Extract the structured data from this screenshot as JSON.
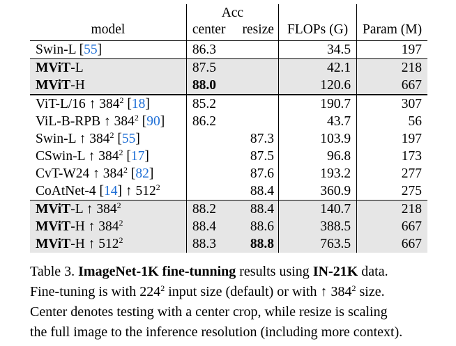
{
  "table": {
    "header": {
      "model": "model",
      "acc": "Acc",
      "center": "center",
      "resize": "resize",
      "flops": "FLOPs (G)",
      "param": "Param (M)"
    },
    "groups": [
      {
        "shaded": false,
        "rows": [
          {
            "pre": "Swin-L ",
            "bold": "",
            "res": "",
            "sup": "",
            "ref": "55",
            "center": "86.3",
            "center_bold": false,
            "resize": "",
            "resize_bold": false,
            "flops": "34.5",
            "param": "197"
          }
        ]
      },
      {
        "shaded": true,
        "rows": [
          {
            "pre": "",
            "bold": "MViT",
            "post": "-L",
            "res": "",
            "sup": "",
            "ref": "",
            "center": "87.5",
            "center_bold": false,
            "resize": "",
            "resize_bold": false,
            "flops": "42.1",
            "param": "218"
          },
          {
            "pre": "",
            "bold": "MViT",
            "post": "-H",
            "res": "",
            "sup": "",
            "ref": "",
            "center": "88.0",
            "center_bold": true,
            "resize": "",
            "resize_bold": false,
            "flops": "120.6",
            "param": "667"
          }
        ]
      },
      {
        "shaded": false,
        "rows": [
          {
            "pre": "ViT-L/16 ↑ ",
            "bold": "",
            "res": "384",
            "sup": "2",
            "ref": "18",
            "center": "85.2",
            "center_bold": false,
            "resize": "",
            "resize_bold": false,
            "flops": "190.7",
            "param": "307"
          },
          {
            "pre": "ViL-B-RPB ↑ ",
            "bold": "",
            "res": "384",
            "sup": "2",
            "ref": "90",
            "center": "86.2",
            "center_bold": false,
            "resize": "",
            "resize_bold": false,
            "flops": "43.7",
            "param": "56"
          },
          {
            "pre": "Swin-L ↑ ",
            "bold": "",
            "res": "384",
            "sup": "2",
            "ref": "55",
            "center": "",
            "center_bold": false,
            "resize": "87.3",
            "resize_bold": false,
            "flops": "103.9",
            "param": "197"
          },
          {
            "pre": "CSwin-L ↑ ",
            "bold": "",
            "res": "384",
            "sup": "2",
            "ref": "17",
            "center": "",
            "center_bold": false,
            "resize": "87.5",
            "resize_bold": false,
            "flops": "96.8",
            "param": "173"
          },
          {
            "pre": "CvT-W24 ↑ ",
            "bold": "",
            "res": "384",
            "sup": "2",
            "ref": "82",
            "center": "",
            "center_bold": false,
            "resize": "87.6",
            "resize_bold": false,
            "flops": "193.2",
            "param": "277"
          },
          {
            "pre": "CoAtNet-4 ",
            "bold": "",
            "res": "512",
            "sup": "2",
            "ref": "14",
            "ref_before": true,
            "center": "",
            "center_bold": false,
            "resize": "88.4",
            "resize_bold": false,
            "flops": "360.9",
            "param": "275"
          }
        ]
      },
      {
        "shaded": true,
        "rows": [
          {
            "pre": "",
            "bold": "MViT",
            "post": "-L ↑ ",
            "res": "384",
            "sup": "2",
            "ref": "",
            "center": "88.2",
            "center_bold": false,
            "resize": "88.4",
            "resize_bold": false,
            "flops": "140.7",
            "param": "218"
          },
          {
            "pre": "",
            "bold": "MViT",
            "post": "-H ↑ ",
            "res": "384",
            "sup": "2",
            "ref": "",
            "center": "88.4",
            "center_bold": false,
            "resize": "88.6",
            "resize_bold": false,
            "flops": "388.5",
            "param": "667"
          },
          {
            "pre": "",
            "bold": "MViT",
            "post": "-H ↑ ",
            "res": "512",
            "sup": "2",
            "ref": "",
            "center": "88.3",
            "center_bold": false,
            "resize": "88.8",
            "resize_bold": true,
            "flops": "763.5",
            "param": "667"
          }
        ]
      }
    ]
  },
  "caption": {
    "label": "Table 3. ",
    "bold1": "ImageNet-1K fine-tunning",
    "mid1": " results using ",
    "bold2": "IN-21K",
    "mid2": " data.",
    "line2a": "Fine-tuning is with 224",
    "line2sup1": "2",
    "line2b": " input size (default) or with ↑ 384",
    "line2sup2": "2",
    "line2c": " size.",
    "line3": "Center denotes testing with a center crop, while resize is scaling",
    "line4": "the full image to the inference resolution (including more context)."
  }
}
